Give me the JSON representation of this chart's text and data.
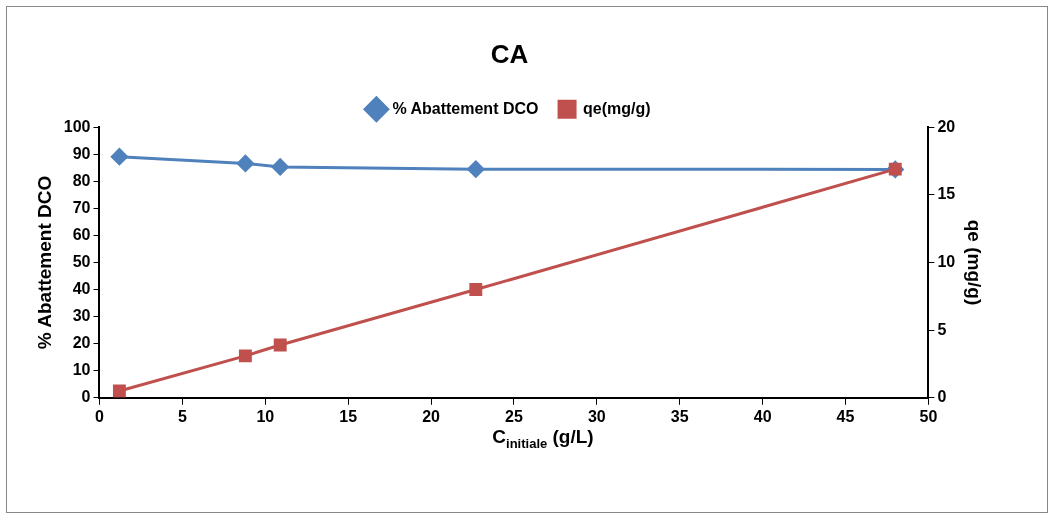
{
  "chart_data": {
    "type": "line",
    "title": "CA",
    "xlabel": "C$_{initiale}$ (g/L)",
    "ylabel": "% Abattement DCO",
    "y2label": "qe (mg/g)",
    "x": [
      1.2,
      8.8,
      10.9,
      22.7,
      48.0
    ],
    "series": [
      {
        "name": "% Abattement DCO",
        "color": "#4f81bd",
        "marker": "diamond",
        "values": [
          89.1,
          86.6,
          85.3,
          84.5,
          84.4
        ]
      },
      {
        "name": "qe(mg/g)",
        "color": "#c0504d",
        "marker": "square",
        "axis": "y2",
        "values": [
          0.5,
          3.1,
          3.9,
          8.0,
          16.9
        ]
      }
    ],
    "xlim": [
      0,
      50
    ],
    "xticks": [
      0,
      5,
      10,
      15,
      20,
      25,
      30,
      35,
      40,
      45,
      50
    ],
    "ylim": [
      0,
      100
    ],
    "yticks": [
      0,
      10,
      20,
      30,
      40,
      50,
      60,
      70,
      80,
      90,
      100
    ],
    "y2lim": [
      0,
      20
    ],
    "y2ticks": [
      0,
      5,
      10,
      15,
      20
    ],
    "grid": false,
    "legend": "top",
    "line_style": "solid"
  }
}
